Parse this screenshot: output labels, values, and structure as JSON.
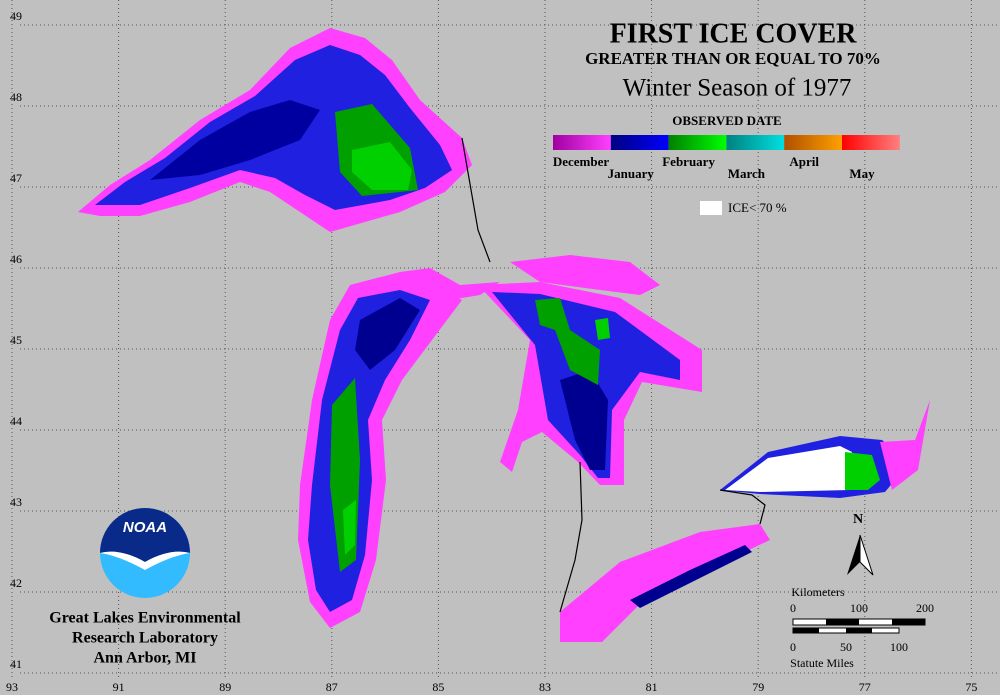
{
  "title": "FIRST ICE COVER",
  "subtitle": "GREATER THAN OR EQUAL TO 70%",
  "season": "Winter Season of 1977",
  "legend": {
    "title": "OBSERVED DATE",
    "months": [
      "December",
      "January",
      "February",
      "March",
      "April",
      "May"
    ],
    "colors": [
      [
        "#a000a0",
        "#ff40ff"
      ],
      [
        "#000080",
        "#0000ff"
      ],
      [
        "#008000",
        "#00ff00"
      ],
      [
        "#008080",
        "#00e0e0"
      ],
      [
        "#b05000",
        "#ffa000"
      ],
      [
        "#ff0000",
        "#ff8080"
      ]
    ],
    "low_ice": "ICE< 70 %"
  },
  "grid": {
    "longitudes": [
      93,
      91,
      89,
      87,
      85,
      83,
      81,
      79,
      77,
      75
    ],
    "latitudes": [
      49,
      48,
      47,
      46,
      45,
      44,
      43,
      42,
      41
    ]
  },
  "north": "N",
  "scale": {
    "km_title": "Kilometers",
    "km_ticks": [
      "0",
      "100",
      "200"
    ],
    "mi_ticks": [
      "0",
      "50",
      "100"
    ],
    "mi_title": "Statute Miles"
  },
  "logo": "NOAA",
  "credit": [
    "Great Lakes Environmental",
    "Research Laboratory",
    "Ann Arbor, MI"
  ]
}
